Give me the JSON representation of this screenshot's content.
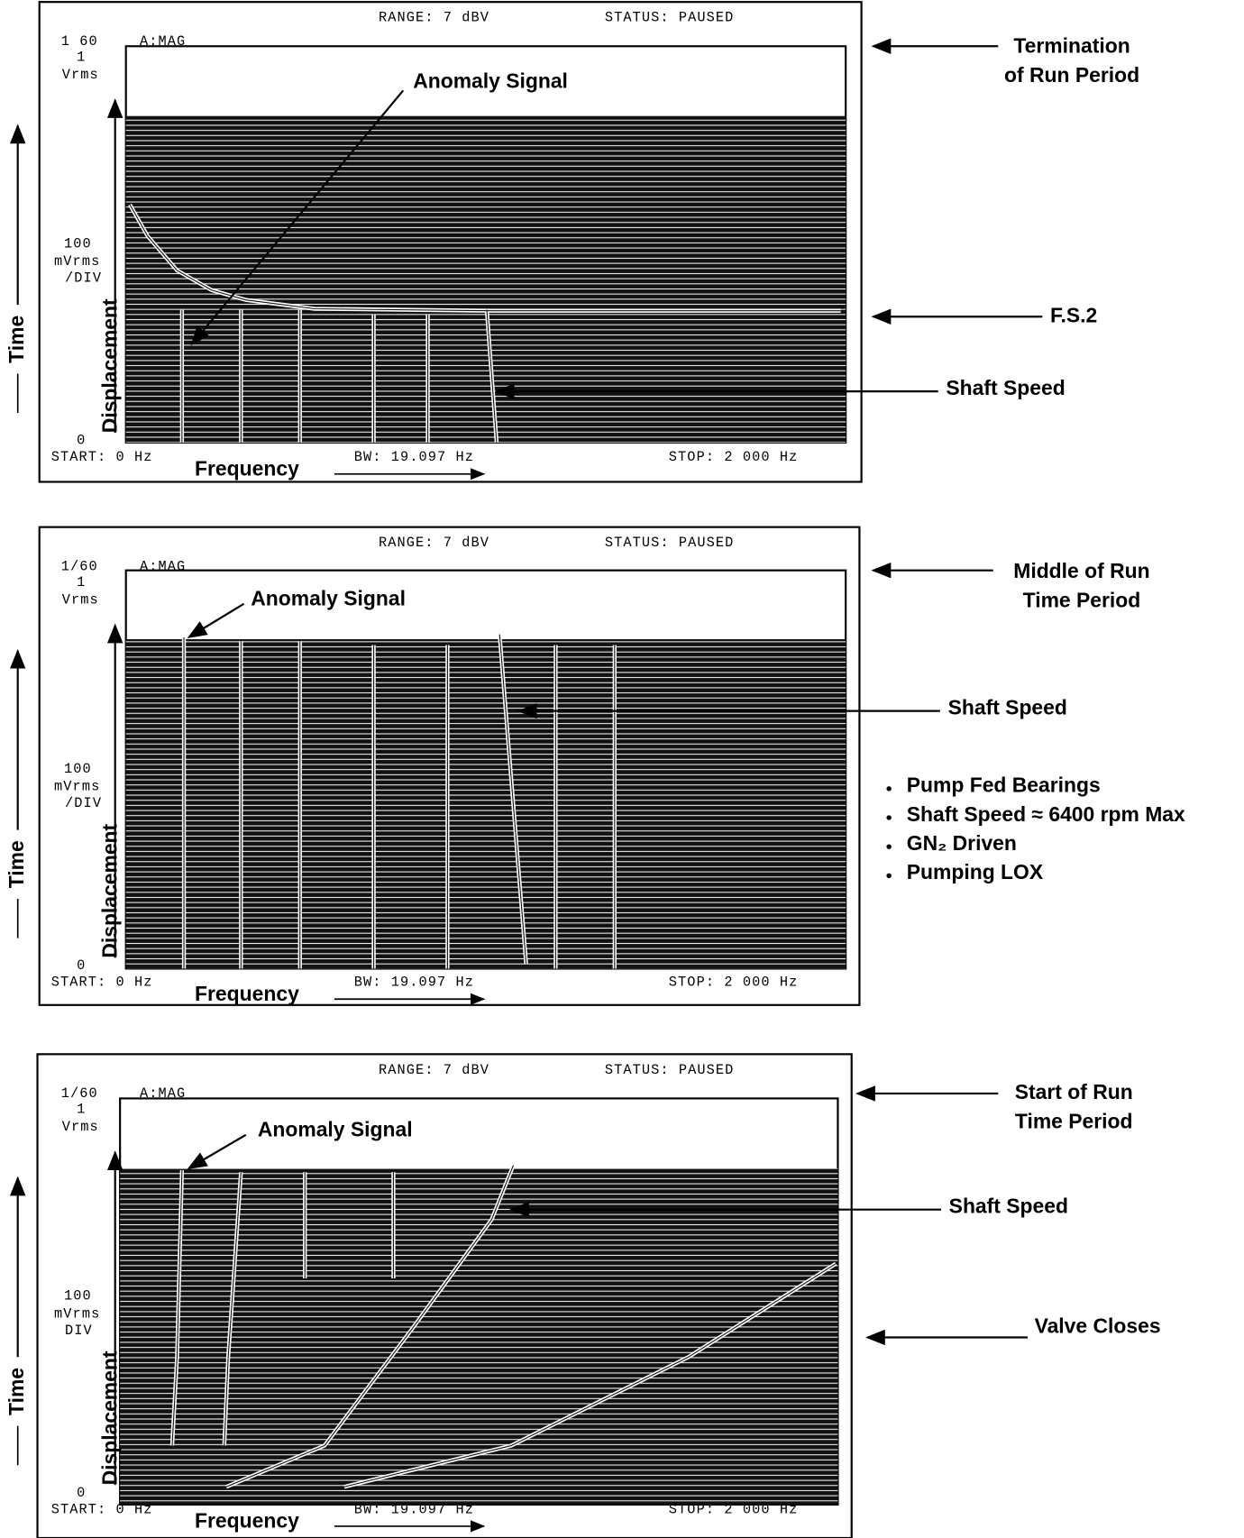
{
  "panels": [
    {
      "range": "RANGE: 7 dBV",
      "status": "STATUS: PAUSED",
      "scale": "1 60",
      "trace": "A:MAG",
      "y_top": "1",
      "y_top_unit": "Vrms",
      "y_mid": "100",
      "y_mid_unit": "mVrms",
      "y_mid_div": "/DIV",
      "y_zero": "0",
      "start": "START: 0 Hz",
      "bw": "BW: 19.097 Hz",
      "stop": "STOP: 2 000 Hz",
      "x_label": "Frequency",
      "y_label": "Displacement",
      "time_label": "Time",
      "anomaly": "Anomaly Signal",
      "period": [
        "Termination",
        "of Run Period"
      ],
      "shaft_speed": "Shaft Speed",
      "marker": "F.S.2"
    },
    {
      "range": "RANGE: 7 dBV",
      "status": "STATUS: PAUSED",
      "scale": "1/60",
      "trace": "A:MAG",
      "y_top": "1",
      "y_top_unit": "Vrms",
      "y_mid": "100",
      "y_mid_unit": "mVrms",
      "y_mid_div": "/DIV",
      "y_zero": "0",
      "start": "START: 0 Hz",
      "bw": "BW: 19.097 Hz",
      "stop": "STOP: 2 000 Hz",
      "x_label": "Frequency",
      "y_label": "Displacement",
      "time_label": "Time",
      "anomaly": "Anomaly Signal",
      "period": [
        "Middle of Run",
        "Time Period"
      ],
      "shaft_speed": "Shaft Speed",
      "notes": [
        "Pump Fed Bearings",
        "Shaft Speed ≈ 6400 rpm Max",
        "GN₂ Driven",
        "Pumping LOX"
      ]
    },
    {
      "range": "RANGE: 7 dBV",
      "status": "STATUS: PAUSED",
      "scale": "1/60",
      "trace": "A:MAG",
      "y_top": "1",
      "y_top_unit": "Vrms",
      "y_mid": "100",
      "y_mid_unit": "mVrms",
      "y_mid_div": "DIV",
      "y_zero": "0",
      "start": "START: 0 Hz",
      "bw": "BW: 19.097 Hz",
      "stop": "STOP: 2 000 Hz",
      "x_label": "Frequency",
      "y_label": "Displacement",
      "time_label": "Time",
      "anomaly": "Anomaly Signal",
      "period": [
        "Start of Run",
        "Time Period"
      ],
      "shaft_speed": "Shaft Speed",
      "marker": "Valve Closes"
    }
  ]
}
